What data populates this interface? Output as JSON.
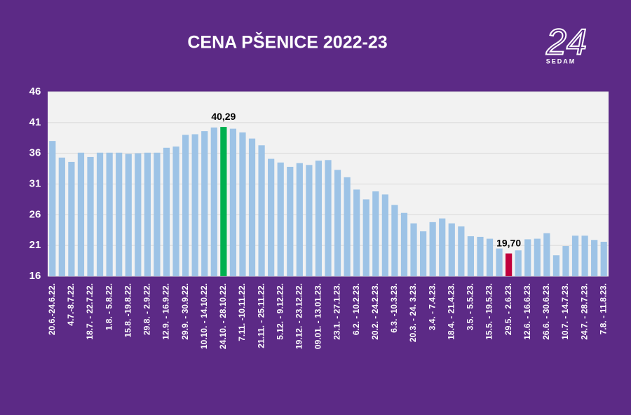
{
  "chart_data": {
    "type": "bar",
    "title": "CENA PŠENICE 2022-23",
    "categories": [
      "20.6.-24.6.22.",
      null,
      "4.7.-8.7.22.",
      null,
      "18.7. - 22.7.22.",
      null,
      "1.8. - 5.8.22.",
      null,
      "15.8. -19.8.22.",
      null,
      "29.8. - 2.9.22.",
      null,
      "12.9. - 16.9.22.",
      null,
      "29.9. - 30.9.22.",
      null,
      "10.10. - 14.10.22.",
      null,
      "24.10. - 28.10.22.",
      null,
      "7.11. -10.11.22.",
      null,
      "21.11. - 25.11.22.",
      null,
      "5.12. - 9.12.22.",
      null,
      "19.12. - 23.12.22.",
      null,
      "09.01. - 13.01.23.",
      null,
      "23.1. - 27.1.23.",
      null,
      "6.2. - 10.2.23.",
      null,
      "20.2. - 24.2.23.",
      null,
      "6.3. -10.3.23.",
      null,
      "20.3. - 24. 3.23.",
      null,
      "3.4. - 7.4.23.",
      null,
      "18.4. - 21.4.23.",
      null,
      "3.5. - 5.5.23.",
      null,
      "15.5. - 19.5.23.",
      null,
      "29.5. - 2.6.23.",
      null,
      "12.6. - 16.6.23.",
      null,
      "26.6. - 30.6.23.",
      null,
      "10.7. - 14.7.23.",
      null,
      "24.7. - 28.7.23.",
      null,
      "7.8. - 11.8.23."
    ],
    "values": [
      38.0,
      35.3,
      34.6,
      36.1,
      35.4,
      36.1,
      36.1,
      36.1,
      35.9,
      36.0,
      36.1,
      36.1,
      36.9,
      37.1,
      39.0,
      39.1,
      39.6,
      40.2,
      40.29,
      40.0,
      39.4,
      38.4,
      37.3,
      35.1,
      34.5,
      33.8,
      34.4,
      34.1,
      34.8,
      34.9,
      33.3,
      32.1,
      30.1,
      28.5,
      29.8,
      29.3,
      27.6,
      26.3,
      24.6,
      23.3,
      24.8,
      25.4,
      24.6,
      24.1,
      22.5,
      22.4,
      22.1,
      20.5,
      19.7,
      20.2,
      22.0,
      22.1,
      23.0,
      19.4,
      20.9,
      22.6,
      22.6,
      21.9,
      21.6
    ],
    "value_labels": [
      null,
      null,
      null,
      null,
      null,
      null,
      null,
      null,
      null,
      null,
      null,
      null,
      null,
      null,
      null,
      null,
      null,
      null,
      "40,29",
      null,
      null,
      null,
      null,
      null,
      null,
      null,
      null,
      null,
      null,
      null,
      null,
      null,
      null,
      null,
      null,
      null,
      null,
      null,
      null,
      null,
      null,
      null,
      null,
      null,
      null,
      null,
      null,
      null,
      "19,70",
      null,
      null,
      null,
      null,
      null,
      null,
      null,
      null,
      null,
      null
    ],
    "color": "#9dc3e6",
    "colors": [
      null,
      null,
      null,
      null,
      null,
      null,
      null,
      null,
      null,
      null,
      null,
      null,
      null,
      null,
      null,
      null,
      null,
      null,
      "#00b050",
      null,
      null,
      null,
      null,
      null,
      null,
      null,
      null,
      null,
      null,
      null,
      null,
      null,
      null,
      null,
      null,
      null,
      null,
      null,
      null,
      null,
      null,
      null,
      null,
      null,
      null,
      null,
      null,
      null,
      "#c0003c",
      null,
      null,
      null,
      null,
      null,
      null,
      null,
      null,
      null,
      null
    ],
    "ylim": [
      16,
      46
    ],
    "yticks": [
      16,
      21,
      26,
      31,
      36,
      41,
      46
    ],
    "grid": true
  },
  "logo": {
    "number": "24",
    "text": "SEDAM"
  }
}
